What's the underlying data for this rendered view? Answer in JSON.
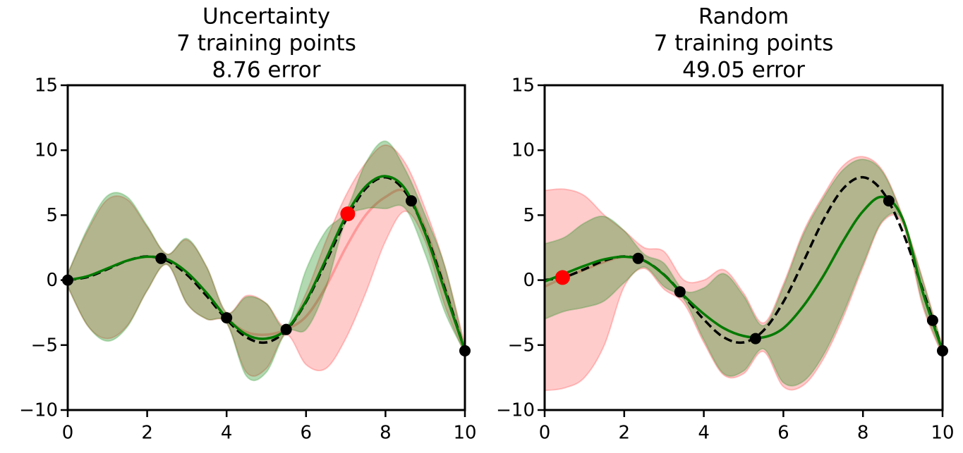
{
  "chart_data": [
    {
      "type": "line",
      "title": [
        "Uncertainty",
        "7 training points",
        "8.76 error"
      ],
      "x": [
        0,
        0.5,
        1,
        1.5,
        2,
        2.5,
        3,
        3.5,
        4,
        4.5,
        5,
        5.5,
        6,
        6.5,
        7,
        7.5,
        8,
        8.5,
        9,
        9.5,
        10
      ],
      "xlim": [
        0,
        10
      ],
      "ylim": [
        -10,
        15
      ],
      "xticks": [
        0,
        2,
        4,
        6,
        8,
        10
      ],
      "yticks": [
        {
          "value": -10,
          "label": "−10"
        },
        {
          "value": -5,
          "label": "−5"
        },
        0,
        5,
        10,
        15
      ],
      "bands": [
        {
          "color": "#ff0000",
          "lower": [
            -0.5,
            -3.5,
            -4.5,
            -3.5,
            -0.8,
            1.2,
            -1.8,
            -3,
            -3.3,
            -7.1,
            -6.8,
            -4.2,
            -6.5,
            -6.8,
            -4.5,
            -1,
            3,
            5.3,
            3,
            -2,
            -5.7
          ],
          "upper": [
            0.5,
            3.8,
            6.2,
            6.2,
            4.1,
            2.0,
            3.1,
            1.0,
            -2.5,
            -1.2,
            -1.8,
            -3.6,
            -1,
            3,
            6.5,
            9,
            10.4,
            9,
            5.5,
            1,
            -5
          ]
        },
        {
          "color": "#008000",
          "lower": [
            -0.5,
            -3.5,
            -4.7,
            -3.6,
            -0.8,
            1.2,
            -1.8,
            -3,
            -3.3,
            -7.4,
            -7.1,
            -4,
            -3.8,
            -0.6,
            4.5,
            5.5,
            5.5,
            5.5,
            2,
            -2.5,
            -5.6
          ],
          "upper": [
            0.5,
            4,
            6.5,
            6.4,
            4.2,
            2.0,
            3.2,
            1.0,
            -2.5,
            -1.3,
            -1.8,
            -3.6,
            0.8,
            3.8,
            5.3,
            9,
            10.7,
            8.5,
            5,
            1,
            -5.3
          ]
        }
      ],
      "series": [
        {
          "color": "#ff6666",
          "style": "solid",
          "values": [
            0,
            0.3,
            0.9,
            1.5,
            1.8,
            1.6,
            0.6,
            -1.0,
            -2.9,
            -4.0,
            -4.2,
            -3.8,
            -2.8,
            -0.5,
            2.5,
            5,
            6.4,
            6.8,
            4,
            -0.5,
            -5.44
          ]
        },
        {
          "color": "#000000",
          "style": "dashed",
          "values": [
            0,
            0.24,
            0.841,
            1.496,
            1.819,
            1.496,
            0.423,
            -1.228,
            -3.027,
            -4.399,
            -4.795,
            -3.881,
            -1.676,
            1.398,
            4.599,
            7.035,
            7.915,
            6.783,
            3.709,
            -0.713,
            -5.44
          ]
        },
        {
          "color": "#007a00",
          "style": "solid",
          "values": [
            0,
            0.3,
            0.9,
            1.5,
            1.8,
            1.6,
            0.6,
            -1.0,
            -2.9,
            -4.2,
            -4.5,
            -3.8,
            -1.6,
            1.6,
            4.9,
            7.2,
            8.0,
            7.0,
            3.6,
            -0.9,
            -5.44
          ]
        }
      ],
      "points": {
        "color": "#000000",
        "x": [
          0,
          2.35,
          4.0,
          5.5,
          8.65,
          10
        ],
        "y": [
          0,
          1.67,
          -2.9,
          -3.8,
          6.1,
          -5.44
        ]
      },
      "new_point": {
        "color": "#ff0000",
        "x": [
          7.05
        ],
        "y": [
          5.1
        ]
      }
    },
    {
      "type": "line",
      "title": [
        "Random",
        "7 training points",
        "49.05 error"
      ],
      "x": [
        0,
        0.5,
        1,
        1.5,
        2,
        2.5,
        3,
        3.5,
        4,
        4.5,
        5,
        5.5,
        6,
        6.5,
        7,
        7.5,
        8,
        8.5,
        9,
        9.5,
        10
      ],
      "xlim": [
        0,
        10
      ],
      "ylim": [
        -10,
        15
      ],
      "xticks": [
        0,
        2,
        4,
        6,
        8,
        10
      ],
      "yticks": [
        {
          "value": -10,
          "label": "−10"
        },
        {
          "value": -5,
          "label": "−5"
        },
        0,
        5,
        10,
        15
      ],
      "bands": [
        {
          "color": "#ff0000",
          "lower": [
            -8.5,
            -8.3,
            -7.5,
            -5,
            -0.5,
            0.9,
            -0.7,
            -1.8,
            -4.8,
            -7.3,
            -7.2,
            -5.5,
            -8.2,
            -8.1,
            -6.1,
            -2.9,
            1,
            4.5,
            4.3,
            -2,
            -5.8
          ],
          "upper": [
            6.9,
            7,
            6.5,
            5,
            3.8,
            2.5,
            2.2,
            0,
            0,
            0.8,
            -1,
            -3.3,
            -0.3,
            3.7,
            6.5,
            8.8,
            9.5,
            8.4,
            4.9,
            0.1,
            -5.1
          ]
        },
        {
          "color": "#008000",
          "lower": [
            -3,
            -2.4,
            -2.1,
            -1.6,
            -0.2,
            1.0,
            -0.5,
            -1.5,
            -4.6,
            -7.2,
            -7,
            -5.3,
            -7.9,
            -7.8,
            -5.8,
            -2.6,
            1.2,
            4.6,
            4.5,
            -1.8,
            -5.7
          ],
          "upper": [
            2.8,
            3.3,
            4.4,
            4.9,
            3.8,
            2.0,
            1.3,
            -0.8,
            -0.6,
            0.5,
            -1.2,
            -3.5,
            -0.5,
            3.5,
            6.3,
            8.5,
            9.3,
            8.3,
            4.8,
            0,
            -5.2
          ]
        }
      ],
      "series": [
        {
          "color": "#ff6666",
          "style": "solid",
          "values": [
            -0.5,
            0.2,
            0.8,
            1.4,
            1.8,
            1.5,
            0.4,
            -1.2,
            -2.6,
            -3.7,
            -4.3,
            -4.4,
            -3.7,
            -2.0,
            0.3,
            3.0,
            5.3,
            6.4,
            4.7,
            -0.9,
            -5.44
          ]
        },
        {
          "color": "#000000",
          "style": "dashed",
          "values": [
            0,
            0.24,
            0.841,
            1.496,
            1.819,
            1.496,
            0.423,
            -1.228,
            -3.027,
            -4.399,
            -4.795,
            -3.881,
            -1.676,
            1.398,
            4.599,
            7.035,
            7.915,
            6.783,
            3.709,
            -0.713,
            -5.44
          ]
        },
        {
          "color": "#007a00",
          "style": "solid",
          "values": [
            -0.1,
            0.5,
            1.1,
            1.6,
            1.8,
            1.5,
            0.4,
            -1.2,
            -2.6,
            -3.7,
            -4.3,
            -4.4,
            -3.7,
            -2.0,
            0.3,
            3.0,
            5.3,
            6.4,
            4.7,
            -0.9,
            -5.44
          ]
        }
      ],
      "points": {
        "color": "#000000",
        "x": [
          2.35,
          3.4,
          5.3,
          8.65,
          9.75,
          10
        ],
        "y": [
          1.67,
          -0.9,
          -4.5,
          6.1,
          -3.1,
          -5.44
        ]
      },
      "new_point": {
        "color": "#ff0000",
        "x": [
          0.45
        ],
        "y": [
          0.2
        ]
      }
    }
  ]
}
